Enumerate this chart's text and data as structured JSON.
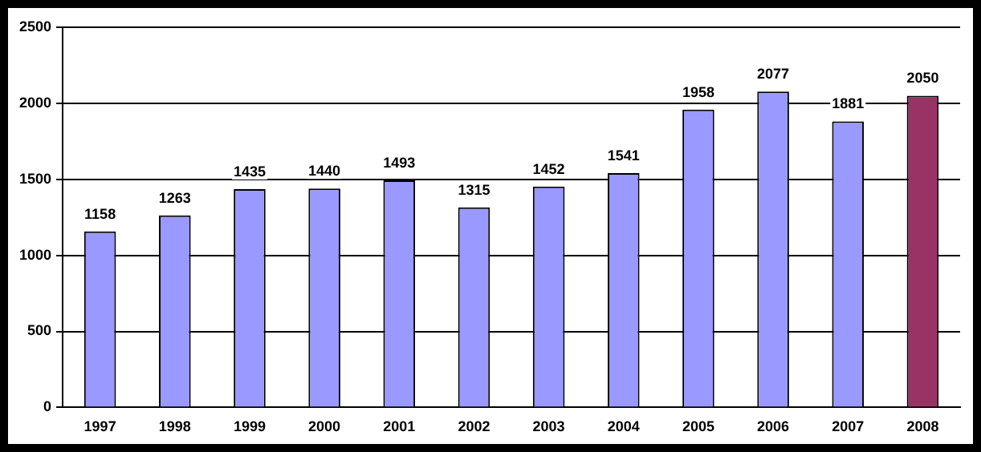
{
  "chart_data": {
    "type": "bar",
    "categories": [
      "1997",
      "1998",
      "1999",
      "2000",
      "2001",
      "2002",
      "2003",
      "2004",
      "2005",
      "2006",
      "2007",
      "2008"
    ],
    "values": [
      1158,
      1263,
      1435,
      1440,
      1493,
      1315,
      1452,
      1541,
      1958,
      2077,
      1881,
      2050
    ],
    "colors": [
      "#9999ff",
      "#9999ff",
      "#9999ff",
      "#9999ff",
      "#9999ff",
      "#9999ff",
      "#9999ff",
      "#9999ff",
      "#9999ff",
      "#9999ff",
      "#9999ff",
      "#993366"
    ],
    "ylim": [
      0,
      2500
    ],
    "yticks": [
      0,
      500,
      1000,
      1500,
      2000,
      2500
    ],
    "grid": "y",
    "data_labels": true,
    "legend": false
  }
}
